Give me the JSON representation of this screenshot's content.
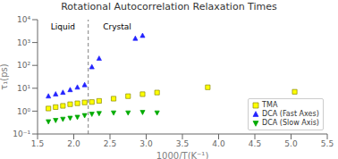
{
  "chart_data": {
    "type": "scatter",
    "title": "Rotational Autocorrelation Relaxation Times",
    "xlabel": "1000/T(K⁻¹)",
    "ylabel": "τ₁(ps)",
    "xlim": [
      1.5,
      5.5
    ],
    "ylim": [
      0.1,
      10000
    ],
    "log": "y",
    "grid": false,
    "legend": "lower right",
    "xticks": [
      1.5,
      {
        "value": 2.0,
        "label": "2.0"
      },
      2.5,
      {
        "value": 3.0,
        "label": "3.0"
      },
      3.5,
      {
        "value": 4.0,
        "label": "4.0"
      },
      4.5,
      {
        "value": 5.0,
        "label": "5.0"
      },
      5.5
    ],
    "yticks": [
      {
        "value": 0.1,
        "label": "10⁻¹"
      },
      {
        "value": 1,
        "label": "10⁰"
      },
      {
        "value": 10,
        "label": "10¹"
      },
      {
        "value": 100,
        "label": "10²"
      },
      {
        "value": 1000,
        "label": "10³"
      },
      {
        "value": 10000,
        "label": "10⁴"
      }
    ],
    "reference_lines": [
      {
        "x": 2.2,
        "color": "gray",
        "line_style": "dashed"
      }
    ],
    "annotations": [
      {
        "x": 1.85,
        "y": 8000,
        "text": "Liquid"
      },
      {
        "x": 2.6,
        "y": 8000,
        "text": "Crystal"
      }
    ],
    "series": [
      {
        "name": "TMA",
        "color": "#ffff00",
        "edge_color": "#888800",
        "marker": "square",
        "x": [
          1.65,
          1.75,
          1.85,
          1.95,
          2.05,
          2.15,
          2.25,
          2.35,
          2.55,
          2.75,
          2.95,
          3.15,
          3.85,
          5.05
        ],
        "values": [
          1.3,
          1.5,
          1.7,
          2.0,
          2.2,
          2.4,
          2.5,
          2.8,
          3.5,
          4.5,
          5.5,
          6.5,
          11.0,
          7.0
        ]
      },
      {
        "name": "DCA (Fast Axes)",
        "color": "#2222ff",
        "marker": "triangle_up",
        "x": [
          1.65,
          1.75,
          1.85,
          1.95,
          2.05,
          2.15,
          2.25,
          2.35,
          2.85,
          2.95
        ],
        "values": [
          4.5,
          5.5,
          6.5,
          8.5,
          11.0,
          14.0,
          85.0,
          200.0,
          1500.0,
          2000.0
        ]
      },
      {
        "name": "DCA (Slow Axis)",
        "color": "#00aa00",
        "marker": "triangle_down",
        "x": [
          1.65,
          1.75,
          1.85,
          1.95,
          2.05,
          2.15,
          2.25,
          2.35,
          2.55,
          2.75,
          2.95,
          3.15
        ],
        "values": [
          0.35,
          0.4,
          0.45,
          0.5,
          0.55,
          0.65,
          0.75,
          0.8,
          0.85,
          0.85,
          0.9,
          0.85
        ]
      }
    ]
  }
}
